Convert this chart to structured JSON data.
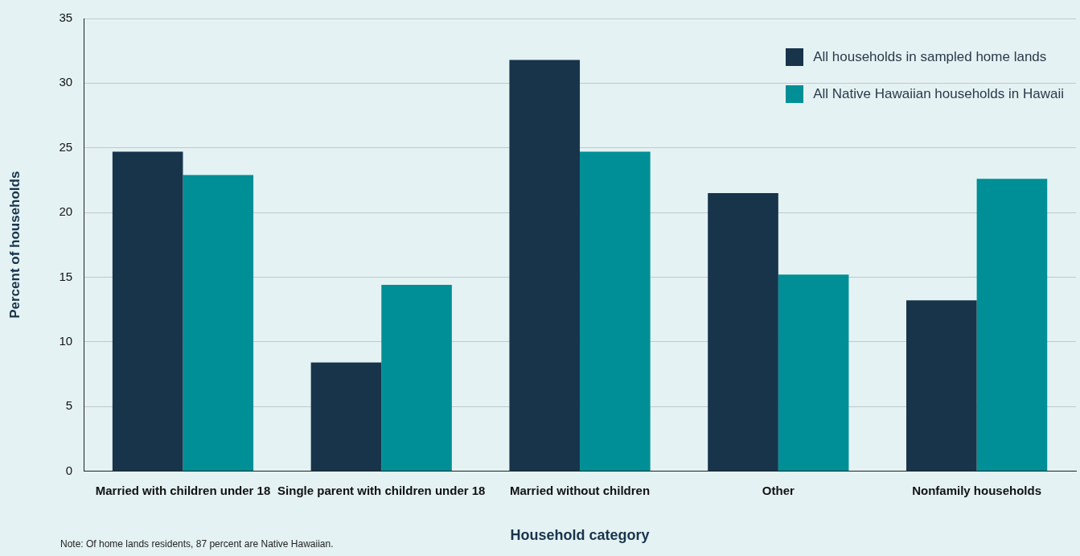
{
  "chart_data": {
    "type": "bar",
    "xlabel": "Household category",
    "ylabel": "Percent of households",
    "categories": [
      "Married with children under 18",
      "Single parent with children under 18",
      "Married without children",
      "Other",
      "Nonfamily households"
    ],
    "series": [
      {
        "name": "All households in sampled home lands",
        "color": "#18344b",
        "values": [
          24.7,
          8.4,
          31.8,
          21.5,
          13.2
        ]
      },
      {
        "name": "All Native Hawaiian households in Hawaii",
        "color": "#008f96",
        "values": [
          22.9,
          14.4,
          24.7,
          15.2,
          22.6
        ]
      }
    ],
    "ylim": [
      0,
      35
    ],
    "yticks": [
      0,
      5,
      10,
      15,
      20,
      25,
      30,
      35
    ],
    "grid": "y",
    "legend": "top right",
    "annotations": [
      "Note: Of home lands residents, 87 percent are Native Hawaiian."
    ]
  }
}
